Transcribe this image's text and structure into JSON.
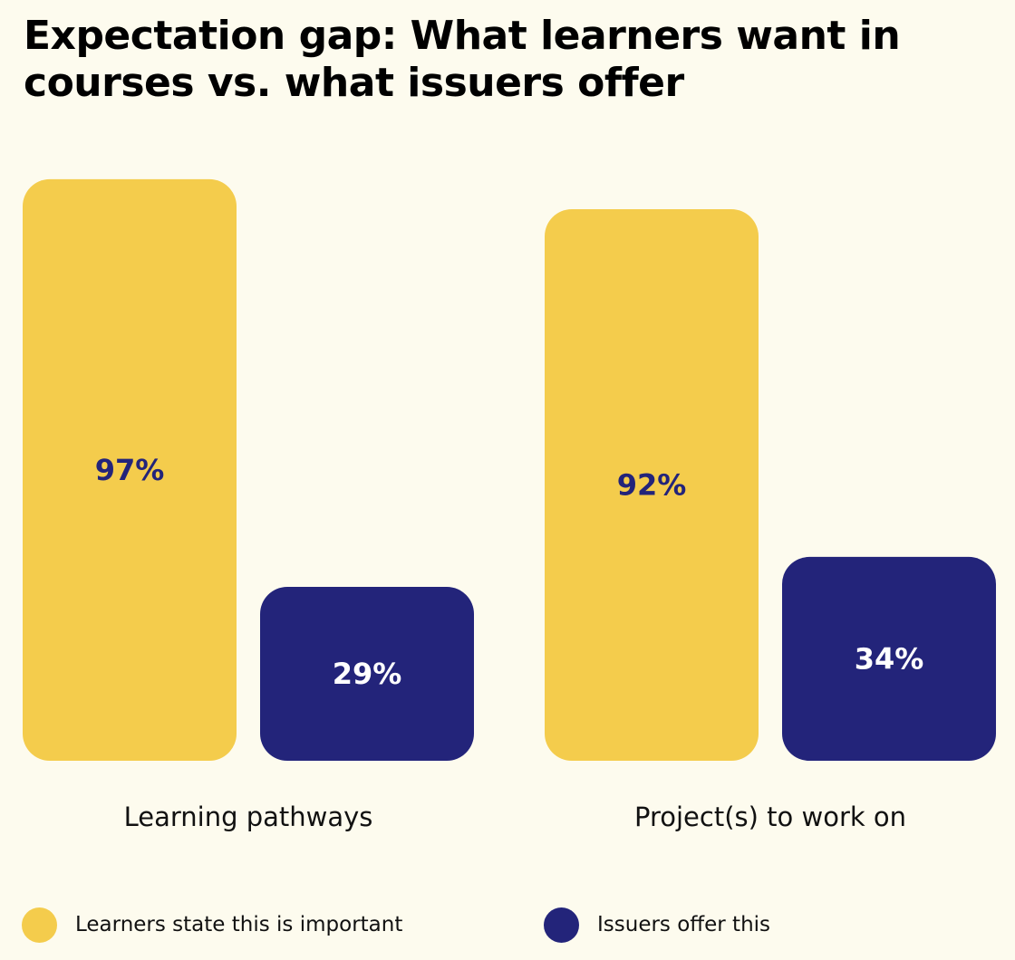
{
  "chart_data": {
    "type": "bar",
    "title": "Expectation gap: What learners want in courses vs. what issuers offer",
    "categories": [
      "Learning pathways",
      "Project(s) to work on"
    ],
    "series": [
      {
        "name": "Learners state this is important",
        "values": [
          97,
          92
        ],
        "labels": [
          "97%",
          "92%"
        ],
        "color": "#f4cc4c",
        "label_color": "#23247a"
      },
      {
        "name": "Issuers offer this",
        "values": [
          29,
          34
        ],
        "labels": [
          "29%",
          "34%"
        ],
        "color": "#23247a",
        "label_color": "#ffffff"
      }
    ],
    "unit": "%",
    "ylim": [
      0,
      100
    ],
    "grid": false,
    "legend_position": "bottom"
  }
}
